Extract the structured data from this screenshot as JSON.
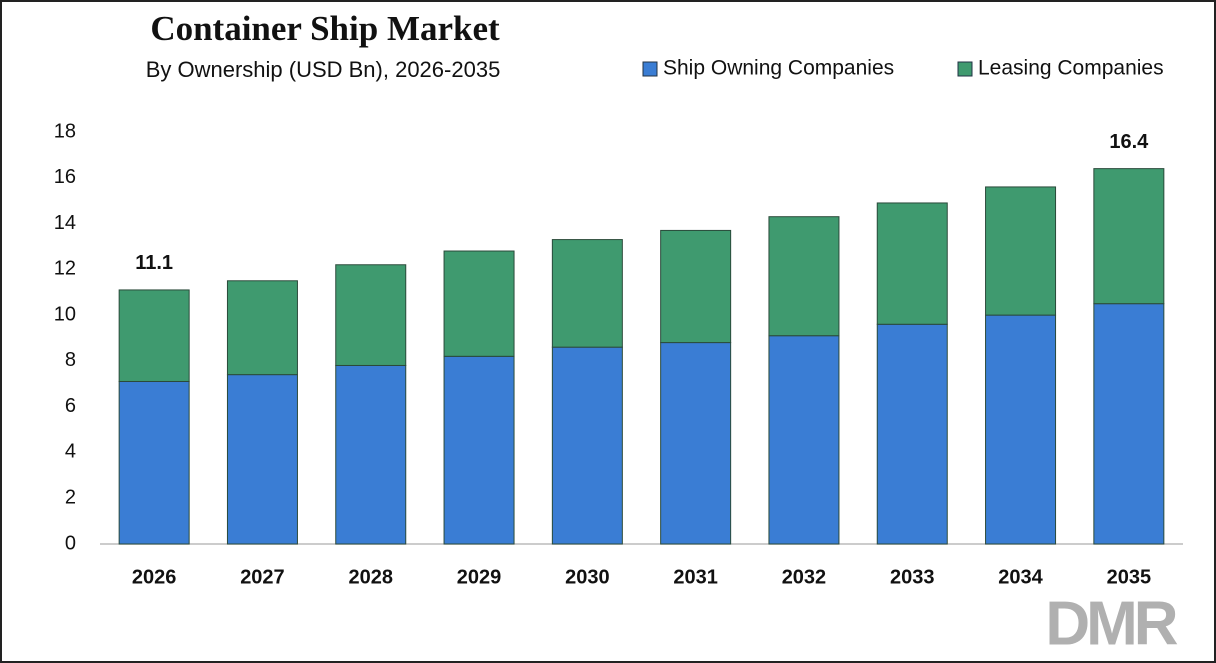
{
  "chart_data": {
    "type": "stacked-bar",
    "title": "Container Ship Market",
    "subtitle": "By Ownership (USD Bn), 2026-2035",
    "categories": [
      "2026",
      "2027",
      "2028",
      "2029",
      "2030",
      "2031",
      "2032",
      "2033",
      "2034",
      "2035"
    ],
    "series": [
      {
        "name": "Ship Owning Companies",
        "color": "#3a7dd4",
        "values": [
          7.1,
          7.4,
          7.8,
          8.2,
          8.6,
          8.8,
          9.1,
          9.6,
          10.0,
          10.5
        ]
      },
      {
        "name": "Leasing Companies",
        "color": "#3f9a6f",
        "values": [
          4.0,
          4.1,
          4.4,
          4.6,
          4.7,
          4.9,
          5.2,
          5.3,
          5.6,
          5.9
        ]
      }
    ],
    "total_labels": [
      11.1,
      null,
      null,
      null,
      null,
      null,
      null,
      null,
      null,
      16.4
    ],
    "ylim": [
      0,
      18
    ],
    "yticks": [
      0,
      2,
      4,
      6,
      8,
      10,
      12,
      14,
      16,
      18
    ],
    "grid": false,
    "legend": "top-right",
    "logo": "DMR"
  }
}
